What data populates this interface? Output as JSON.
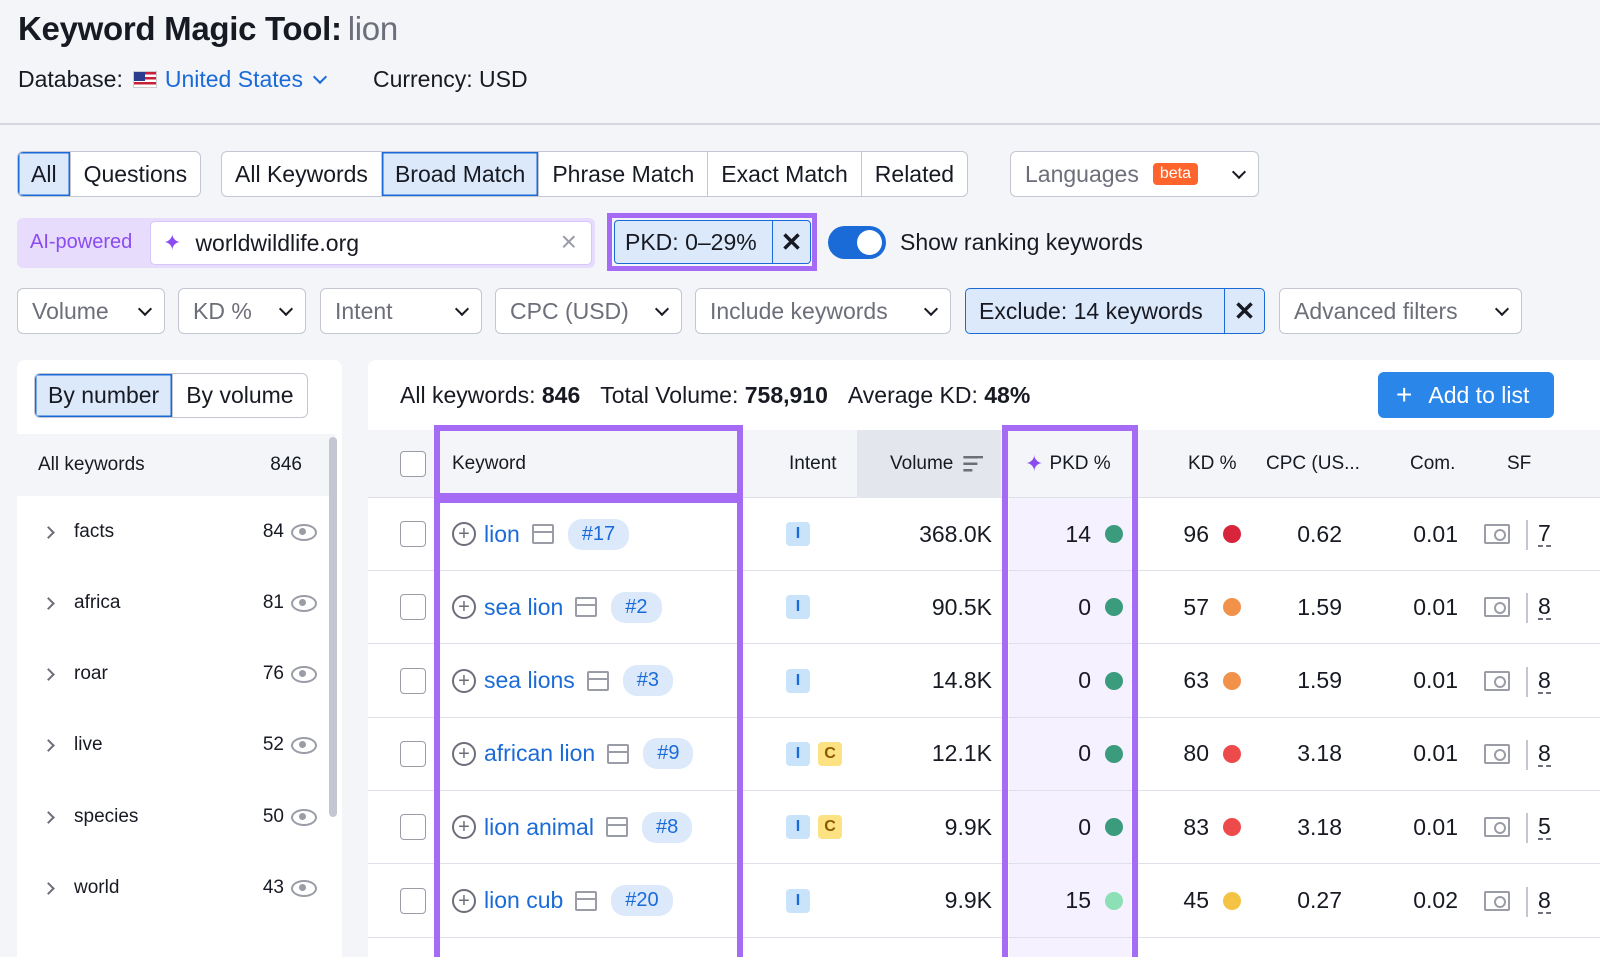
{
  "header": {
    "title": "Keyword Magic Tool:",
    "query": "lion",
    "database_label": "Database:",
    "database_value": "United States",
    "currency": "Currency: USD"
  },
  "match_tabs": {
    "group1": [
      "All",
      "Questions"
    ],
    "group2": [
      "All Keywords",
      "Broad Match",
      "Phrase Match",
      "Exact Match",
      "Related"
    ],
    "languages": "Languages",
    "beta": "beta"
  },
  "ai": {
    "label": "AI-powered",
    "input_value": "worldwildlife.org"
  },
  "pkd_filter": "PKD: 0–29%",
  "toggle_label": "Show ranking keywords",
  "filters": {
    "volume": "Volume",
    "kd": "KD %",
    "intent": "Intent",
    "cpc": "CPC (USD)",
    "include": "Include keywords",
    "exclude": "Exclude: 14 keywords",
    "advanced": "Advanced filters"
  },
  "sidebar": {
    "tabs": [
      "By number",
      "By volume"
    ],
    "all_label": "All keywords",
    "all_count": "846",
    "items": [
      {
        "label": "facts",
        "count": "84"
      },
      {
        "label": "africa",
        "count": "81"
      },
      {
        "label": "roar",
        "count": "76"
      },
      {
        "label": "live",
        "count": "52"
      },
      {
        "label": "species",
        "count": "50"
      },
      {
        "label": "world",
        "count": "43"
      }
    ]
  },
  "summary": {
    "all_label": "All keywords:",
    "all_value": "846",
    "volume_label": "Total Volume:",
    "volume_value": "758,910",
    "kd_label": "Average KD:",
    "kd_value": "48%",
    "add_button": "Add to list"
  },
  "table": {
    "headers": {
      "keyword": "Keyword",
      "intent": "Intent",
      "volume": "Volume",
      "pkd": "PKD %",
      "kd": "KD %",
      "cpc": "CPC (US...",
      "com": "Com.",
      "sf": "SF"
    },
    "rows": [
      {
        "keyword": "lion",
        "rank": "#17",
        "intents": [
          "I"
        ],
        "volume": "368.0K",
        "pkd": "14",
        "pkd_color": "#3a9c7c",
        "kd": "96",
        "kd_color": "#d8253b",
        "cpc": "0.62",
        "com": "0.01",
        "sf": "7"
      },
      {
        "keyword": "sea lion",
        "rank": "#2",
        "intents": [
          "I"
        ],
        "volume": "90.5K",
        "pkd": "0",
        "pkd_color": "#3a9c7c",
        "kd": "57",
        "kd_color": "#f2914a",
        "cpc": "1.59",
        "com": "0.01",
        "sf": "8"
      },
      {
        "keyword": "sea lions",
        "rank": "#3",
        "intents": [
          "I"
        ],
        "volume": "14.8K",
        "pkd": "0",
        "pkd_color": "#3a9c7c",
        "kd": "63",
        "kd_color": "#f2914a",
        "cpc": "1.59",
        "com": "0.01",
        "sf": "8"
      },
      {
        "keyword": "african lion",
        "rank": "#9",
        "intents": [
          "I",
          "C"
        ],
        "volume": "12.1K",
        "pkd": "0",
        "pkd_color": "#3a9c7c",
        "kd": "80",
        "kd_color": "#ed4b4b",
        "cpc": "3.18",
        "com": "0.01",
        "sf": "8"
      },
      {
        "keyword": "lion animal",
        "rank": "#8",
        "intents": [
          "I",
          "C"
        ],
        "volume": "9.9K",
        "pkd": "0",
        "pkd_color": "#3a9c7c",
        "kd": "83",
        "kd_color": "#ed4b4b",
        "cpc": "3.18",
        "com": "0.01",
        "sf": "5"
      },
      {
        "keyword": "lion cub",
        "rank": "#20",
        "intents": [
          "I"
        ],
        "volume": "9.9K",
        "pkd": "15",
        "pkd_color": "#8de0b5",
        "kd": "45",
        "kd_color": "#f5c343",
        "cpc": "0.27",
        "com": "0.02",
        "sf": "8"
      }
    ]
  },
  "colors": {
    "accent": "#1a6bd8",
    "highlight": "#a56bf5",
    "ai": "#8a4bf0"
  }
}
